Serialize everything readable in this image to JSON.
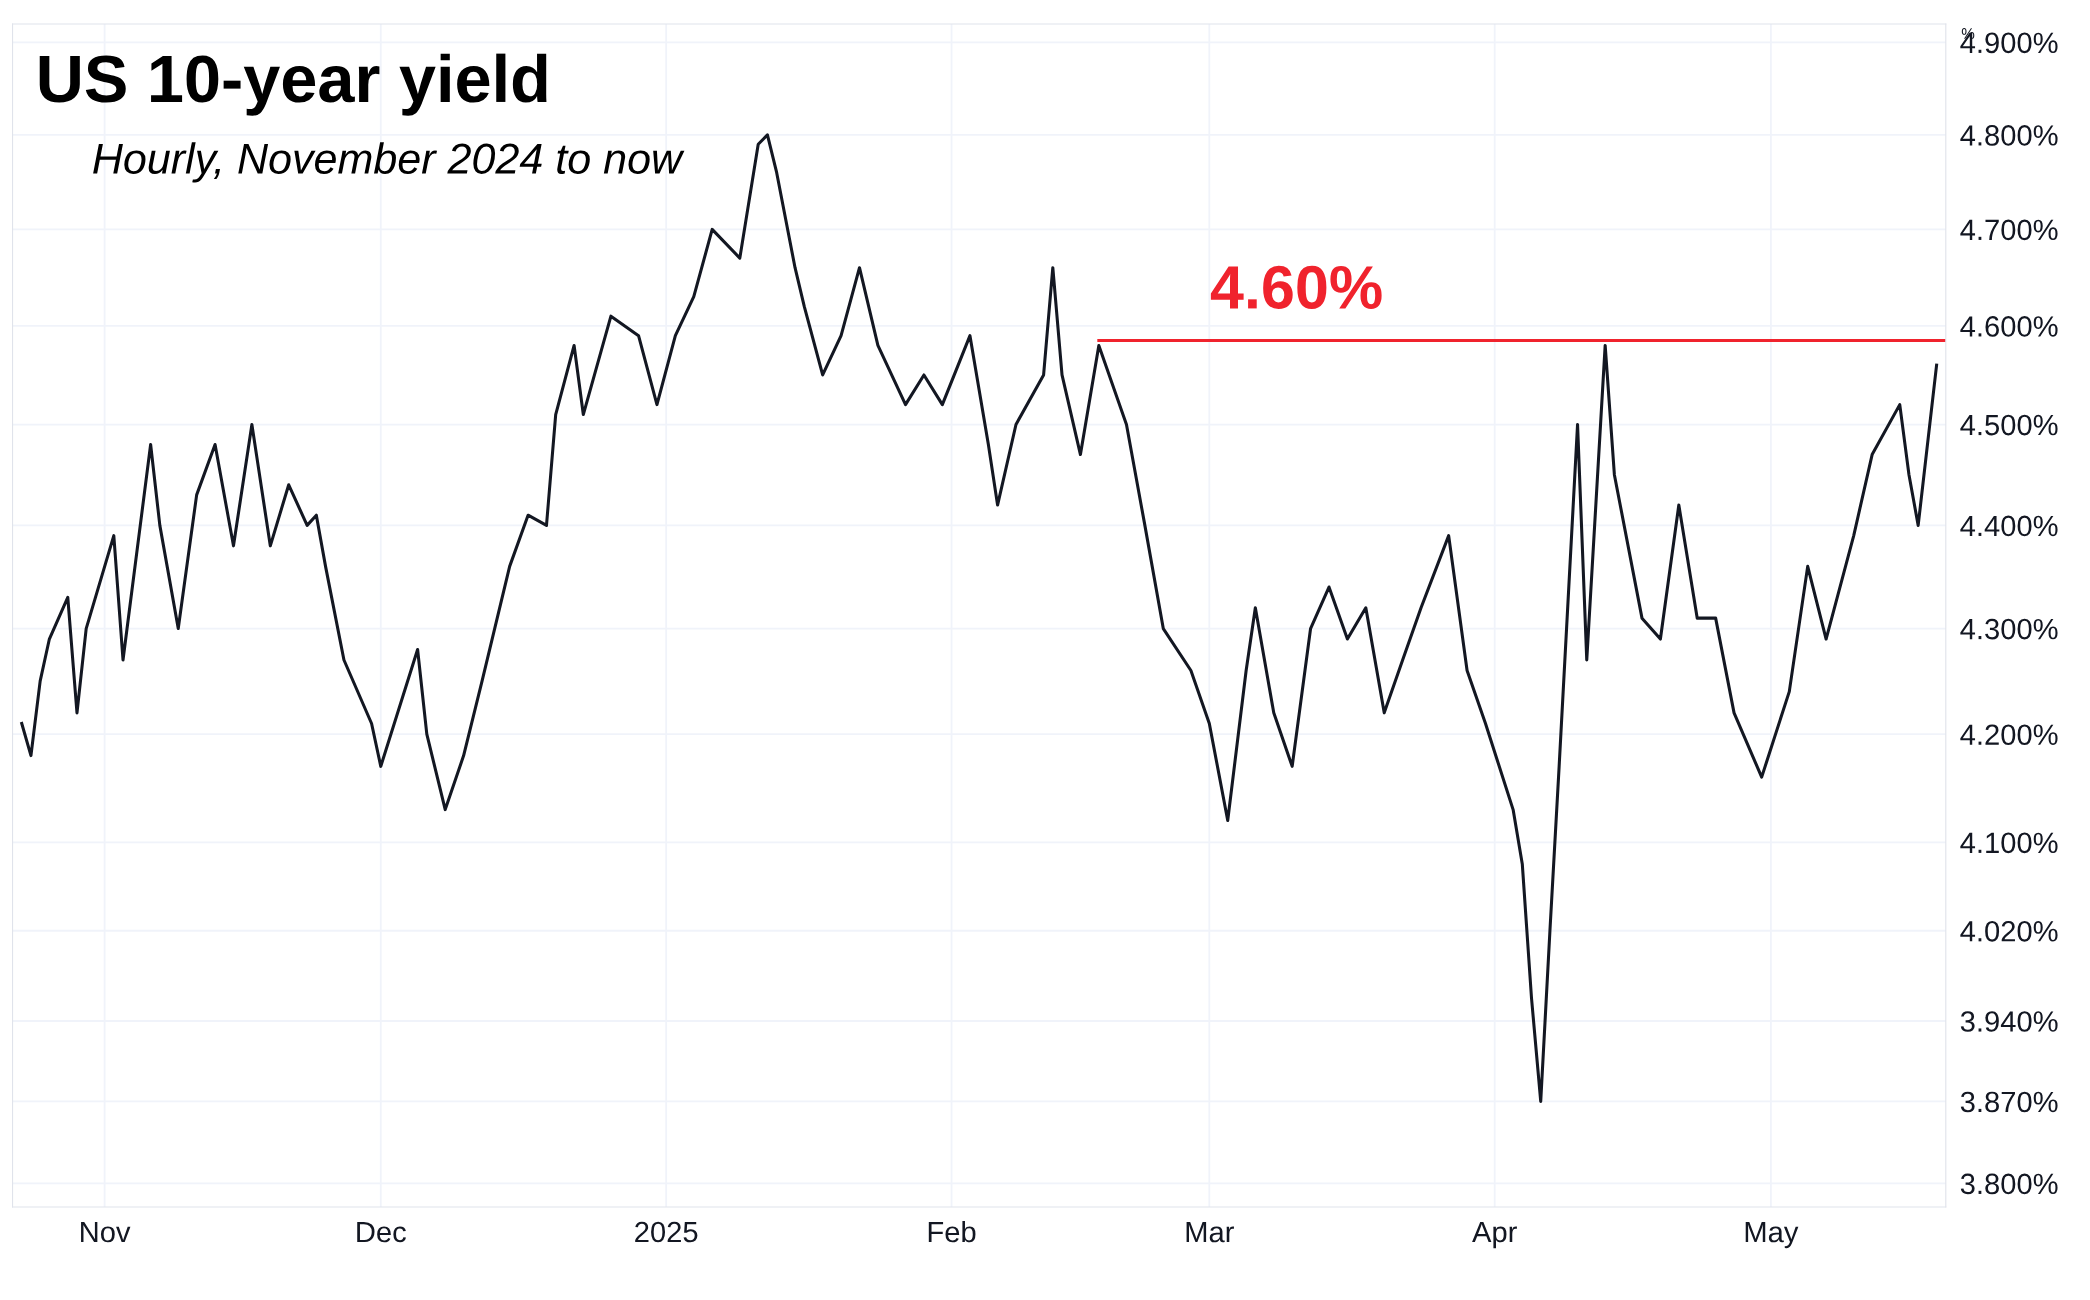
{
  "chart_data": {
    "type": "line",
    "title": "US 10-year yield",
    "subtitle": "Hourly, November 2024 to now",
    "ylabel": "%",
    "x": [
      "2024-10-23",
      "2024-10-24",
      "2024-10-25",
      "2024-10-26",
      "2024-10-28",
      "2024-10-29",
      "2024-10-30",
      "2024-11-02",
      "2024-11-03",
      "2024-11-06",
      "2024-11-07",
      "2024-11-09",
      "2024-11-11",
      "2024-11-13",
      "2024-11-15",
      "2024-11-17",
      "2024-11-19",
      "2024-11-21",
      "2024-11-23",
      "2024-11-24",
      "2024-11-25",
      "2024-11-27",
      "2024-11-30",
      "2024-12-01",
      "2024-12-05",
      "2024-12-06",
      "2024-12-08",
      "2024-12-10",
      "2024-12-12",
      "2024-12-15",
      "2024-12-17",
      "2024-12-19",
      "2024-12-20",
      "2024-12-22",
      "2024-12-23",
      "2024-12-26",
      "2024-12-29",
      "2024-12-31",
      "2025-01-02",
      "2025-01-04",
      "2025-01-06",
      "2025-01-09",
      "2025-01-11",
      "2025-01-12",
      "2025-01-13",
      "2025-01-15",
      "2025-01-16",
      "2025-01-18",
      "2025-01-20",
      "2025-01-22",
      "2025-01-24",
      "2025-01-27",
      "2025-01-29",
      "2025-01-31",
      "2025-02-03",
      "2025-02-05",
      "2025-02-06",
      "2025-02-08",
      "2025-02-11",
      "2025-02-12",
      "2025-02-13",
      "2025-02-15",
      "2025-02-17",
      "2025-02-20",
      "2025-02-22",
      "2025-02-24",
      "2025-02-27",
      "2025-03-01",
      "2025-03-03",
      "2025-03-05",
      "2025-03-06",
      "2025-03-08",
      "2025-03-10",
      "2025-03-12",
      "2025-03-14",
      "2025-03-16",
      "2025-03-18",
      "2025-03-20",
      "2025-03-22",
      "2025-03-24",
      "2025-03-27",
      "2025-03-29",
      "2025-03-31",
      "2025-04-03",
      "2025-04-04",
      "2025-04-05",
      "2025-04-06",
      "2025-04-07",
      "2025-04-08",
      "2025-04-10",
      "2025-04-11",
      "2025-04-13",
      "2025-04-14",
      "2025-04-17",
      "2025-04-19",
      "2025-04-21",
      "2025-04-23",
      "2025-04-25",
      "2025-04-27",
      "2025-04-30",
      "2025-05-03",
      "2025-05-05",
      "2025-05-07",
      "2025-05-10",
      "2025-05-12",
      "2025-05-15",
      "2025-05-16",
      "2025-05-17",
      "2025-05-19"
    ],
    "series": [
      {
        "color": "#131722",
        "values": [
          4.21,
          4.18,
          4.25,
          4.29,
          4.33,
          4.22,
          4.3,
          4.39,
          4.27,
          4.48,
          4.4,
          4.3,
          4.43,
          4.48,
          4.38,
          4.5,
          4.38,
          4.44,
          4.4,
          4.41,
          4.36,
          4.27,
          4.21,
          4.17,
          4.28,
          4.2,
          4.13,
          4.18,
          4.25,
          4.36,
          4.41,
          4.4,
          4.51,
          4.58,
          4.51,
          4.61,
          4.59,
          4.52,
          4.59,
          4.63,
          4.7,
          4.67,
          4.79,
          4.8,
          4.76,
          4.66,
          4.62,
          4.55,
          4.59,
          4.66,
          4.58,
          4.52,
          4.55,
          4.52,
          4.59,
          4.48,
          4.42,
          4.5,
          4.55,
          4.66,
          4.55,
          4.47,
          4.58,
          4.5,
          4.4,
          4.3,
          4.26,
          4.21,
          4.12,
          4.26,
          4.32,
          4.22,
          4.17,
          4.3,
          4.34,
          4.29,
          4.32,
          4.22,
          4.27,
          4.32,
          4.39,
          4.26,
          4.21,
          4.13,
          4.08,
          3.96,
          3.87,
          4.02,
          4.17,
          4.5,
          4.27,
          4.58,
          4.45,
          4.31,
          4.29,
          4.42,
          4.31,
          4.31,
          4.22,
          4.16,
          4.24,
          4.36,
          4.29,
          4.39,
          4.47,
          4.52,
          4.45,
          4.4,
          4.56
        ]
      },
      {
        "type": "line",
        "color": "#f0232d",
        "x": [
          "2025-02-17",
          "2025-05-20"
        ],
        "values": [
          4.585,
          4.585
        ]
      }
    ],
    "annotations": [
      "4.60%"
    ],
    "log": true,
    "xlim": [
      "2024-10-22",
      "2025-05-20"
    ],
    "ylim": [
      3.78,
      4.92
    ],
    "xticks": [
      {
        "value": "2024-11-01",
        "label": "Nov"
      },
      {
        "value": "2024-12-01",
        "label": "Dec"
      },
      {
        "value": "2025-01-01",
        "label": "2025"
      },
      {
        "value": "2025-02-01",
        "label": "Feb"
      },
      {
        "value": "2025-03-01",
        "label": "Mar"
      },
      {
        "value": "2025-04-01",
        "label": "Apr"
      },
      {
        "value": "2025-05-01",
        "label": "May"
      }
    ],
    "yticks": [
      {
        "value": 3.8,
        "label": "3.800%"
      },
      {
        "value": 3.87,
        "label": "3.870%"
      },
      {
        "value": 3.94,
        "label": "3.940%"
      },
      {
        "value": 4.02,
        "label": "4.020%"
      },
      {
        "value": 4.1,
        "label": "4.100%"
      },
      {
        "value": 4.2,
        "label": "4.200%"
      },
      {
        "value": 4.3,
        "label": "4.300%"
      },
      {
        "value": 4.4,
        "label": "4.400%"
      },
      {
        "value": 4.5,
        "label": "4.500%"
      },
      {
        "value": 4.6,
        "label": "4.600%"
      },
      {
        "value": 4.7,
        "label": "4.700%"
      },
      {
        "value": 4.8,
        "label": "4.800%"
      },
      {
        "value": 4.9,
        "label": "4.900%"
      }
    ],
    "grid": true
  }
}
